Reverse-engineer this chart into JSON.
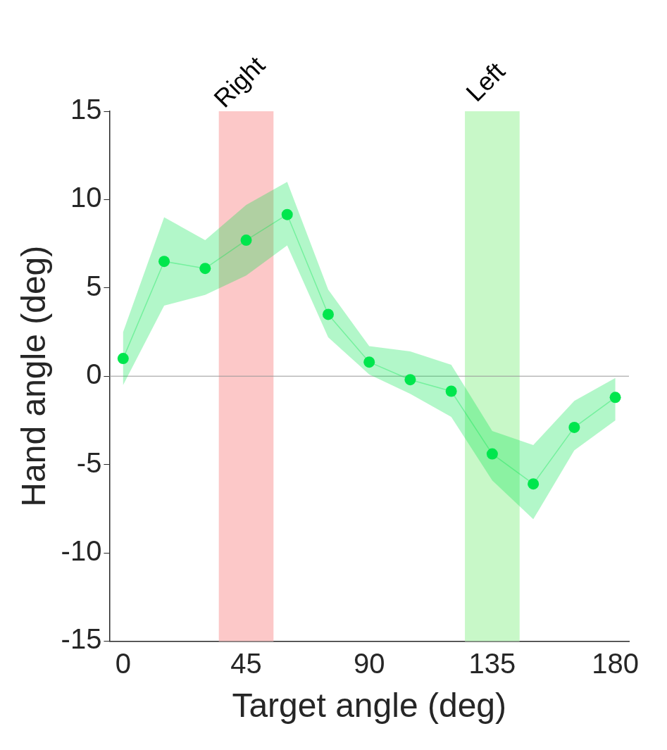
{
  "chart_data": {
    "type": "line",
    "xlabel": "Target angle (deg)",
    "ylabel": "Hand angle (deg)",
    "x": [
      0,
      15,
      30,
      45,
      60,
      75,
      90,
      105,
      120,
      135,
      150,
      165,
      180
    ],
    "series": [
      {
        "color": "#00e64d",
        "values": [
          1.0,
          6.5,
          6.1,
          7.7,
          9.15,
          3.5,
          0.8,
          -0.2,
          -0.85,
          -4.4,
          -6.1,
          -2.9,
          -1.2
        ],
        "lower": [
          -0.5,
          4.0,
          4.6,
          5.7,
          7.4,
          2.2,
          0.1,
          -1.0,
          -2.3,
          -5.9,
          -8.1,
          -4.2,
          -2.5
        ],
        "upper": [
          2.5,
          9.0,
          7.7,
          9.7,
          11.0,
          4.9,
          1.7,
          1.4,
          0.65,
          -3.1,
          -3.9,
          -1.4,
          -0.1
        ]
      }
    ],
    "xlim": [
      -5,
      185
    ],
    "xticks": [
      0,
      45,
      90,
      135,
      180
    ],
    "ylim": [
      -15,
      15
    ],
    "yticks": [
      -15,
      -10,
      -5,
      0,
      5,
      10,
      15
    ],
    "ref_lines": [
      {
        "axis": "y",
        "value": 0,
        "color": "#999999"
      }
    ],
    "bands": [
      {
        "axis": "x",
        "from": 35,
        "to": 55,
        "label": "Right",
        "color": "#fcc8c8"
      },
      {
        "axis": "x",
        "from": 125,
        "to": 145,
        "label": "Left",
        "color": "#c8f8c8"
      }
    ],
    "grid": false,
    "legend": false,
    "marker": "circle",
    "line_style": "solid"
  }
}
